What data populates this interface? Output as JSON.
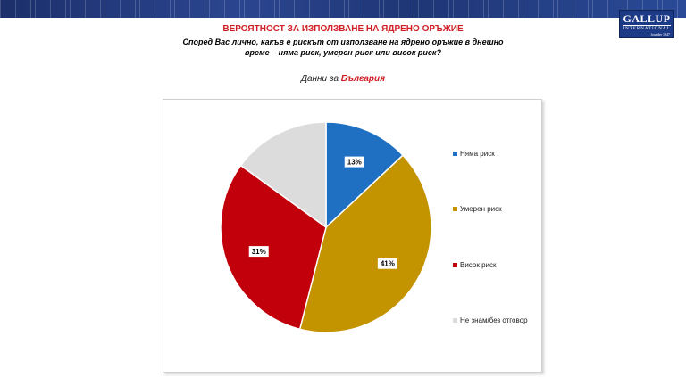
{
  "header": {
    "title": "ВЕРОЯТНОСТ ЗА ИЗПОЛЗВАНЕ НА ЯДРЕНО ОРЪЖИЕ",
    "question": "Според Вас лично, какъв е рискът от използване на ядрено оръжие в днешно време – няма риск, умерен риск или висок риск?",
    "subtitle_prefix": "Данни за ",
    "subtitle_highlight": "България"
  },
  "logo": {
    "line1": "GALLUP",
    "line2": "INTERNATIONAL",
    "line3": "founder 1947"
  },
  "colors": {
    "accent": "#d11f26",
    "banner": "#1f3675"
  },
  "chart_data": {
    "type": "pie",
    "slices": [
      {
        "label": "Няма риск",
        "value": 13,
        "display": "13%",
        "color": "#1f6fc2"
      },
      {
        "label": "Умерен риск",
        "value": 41,
        "display": "41%",
        "color": "#c39300"
      },
      {
        "label": "Висок риск",
        "value": 31,
        "display": "31%",
        "color": "#c1000b"
      },
      {
        "label": "Не знам/без отговор",
        "value": 15,
        "display": "",
        "color": "#dcdcdc"
      }
    ],
    "legend_position": "right"
  }
}
